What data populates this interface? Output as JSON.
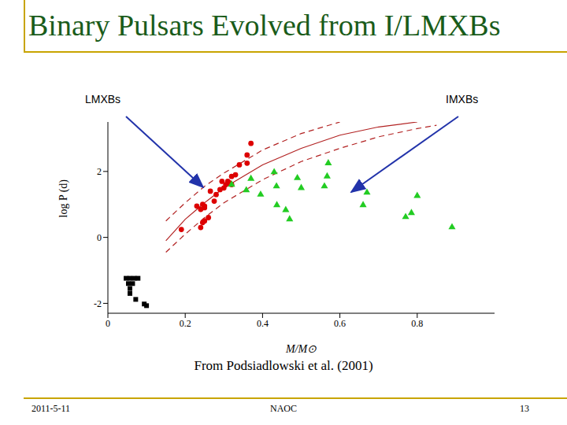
{
  "slide": {
    "title": "Binary Pulsars Evolved from I/LMXBs",
    "caption": "From Podsiadlowski et al. (2001)",
    "date": "2011-5-11",
    "footer": "NAOC",
    "page": 13
  },
  "chart_data": {
    "type": "scatter",
    "x_label": "M/M⊙",
    "y_label": "log P (d)",
    "xlim": [
      0,
      1.0
    ],
    "ylim": [
      -2.3,
      3.5
    ],
    "xticks": [
      0,
      0.2,
      0.4,
      0.6,
      0.8
    ],
    "yticks": [
      -2,
      0,
      2
    ],
    "grid": false,
    "annotations": [
      {
        "text": "LMXBs"
      },
      {
        "text": "IMXBs"
      }
    ],
    "series": [
      {
        "type": "line",
        "line_style": "solid",
        "color": "#b22222",
        "x": [
          0.15,
          0.2,
          0.25,
          0.3,
          0.4,
          0.5,
          0.6,
          0.7,
          0.8
        ],
        "y": [
          -0.1,
          0.55,
          1.05,
          1.5,
          2.2,
          2.7,
          3.1,
          3.35,
          3.5
        ]
      },
      {
        "type": "line",
        "line_style": "dashed",
        "color": "#b22222",
        "x": [
          0.15,
          0.2,
          0.25,
          0.3,
          0.4,
          0.5,
          0.6
        ],
        "y": [
          0.5,
          1.05,
          1.55,
          1.95,
          2.65,
          3.15,
          3.5
        ]
      },
      {
        "type": "line",
        "line_style": "dashed",
        "color": "#b22222",
        "x": [
          0.15,
          0.2,
          0.25,
          0.3,
          0.4,
          0.5,
          0.6,
          0.7,
          0.8,
          0.85
        ],
        "y": [
          -0.45,
          0.1,
          0.6,
          1.05,
          1.75,
          2.3,
          2.7,
          3.05,
          3.3,
          3.4
        ]
      },
      {
        "type": "scatter",
        "marker": "circle",
        "color": "#dd0000",
        "x": [
          0.19,
          0.23,
          0.24,
          0.245,
          0.25,
          0.25,
          0.24,
          0.245,
          0.25,
          0.26,
          0.265,
          0.275,
          0.28,
          0.29,
          0.3,
          0.305,
          0.31,
          0.315,
          0.32,
          0.33,
          0.34,
          0.36,
          0.36,
          0.37,
          0.32,
          0.295
        ],
        "y": [
          0.24,
          0.95,
          0.85,
          1.0,
          0.9,
          0.95,
          0.3,
          0.45,
          0.5,
          0.6,
          1.4,
          1.1,
          1.3,
          1.45,
          1.5,
          1.6,
          1.7,
          1.65,
          1.85,
          1.9,
          2.2,
          2.25,
          2.5,
          2.85,
          1.6,
          1.7
        ]
      },
      {
        "type": "scatter",
        "marker": "triangle",
        "color": "#22cc22",
        "x": [
          0.43,
          0.436,
          0.49,
          0.5,
          0.57,
          0.567,
          0.56,
          0.395,
          0.437,
          0.32,
          0.37,
          0.46,
          0.47,
          0.67,
          0.66,
          0.8,
          0.785,
          0.77,
          0.89,
          0.358
        ],
        "y": [
          1.98,
          1.55,
          1.8,
          1.5,
          2.25,
          1.85,
          1.55,
          1.3,
          0.98,
          1.6,
          1.78,
          0.83,
          0.55,
          1.36,
          0.98,
          1.26,
          0.74,
          0.62,
          0.31,
          1.43
        ]
      },
      {
        "type": "scatter",
        "marker": "square",
        "color": "#000000",
        "x": [
          0.047,
          0.057,
          0.068,
          0.078,
          0.053,
          0.057,
          0.057,
          0.072,
          0.094,
          0.1,
          0.064
        ],
        "y": [
          -1.24,
          -1.24,
          -1.24,
          -1.24,
          -1.4,
          -1.55,
          -1.7,
          -1.88,
          -2.02,
          -2.07,
          -1.4
        ]
      }
    ]
  }
}
